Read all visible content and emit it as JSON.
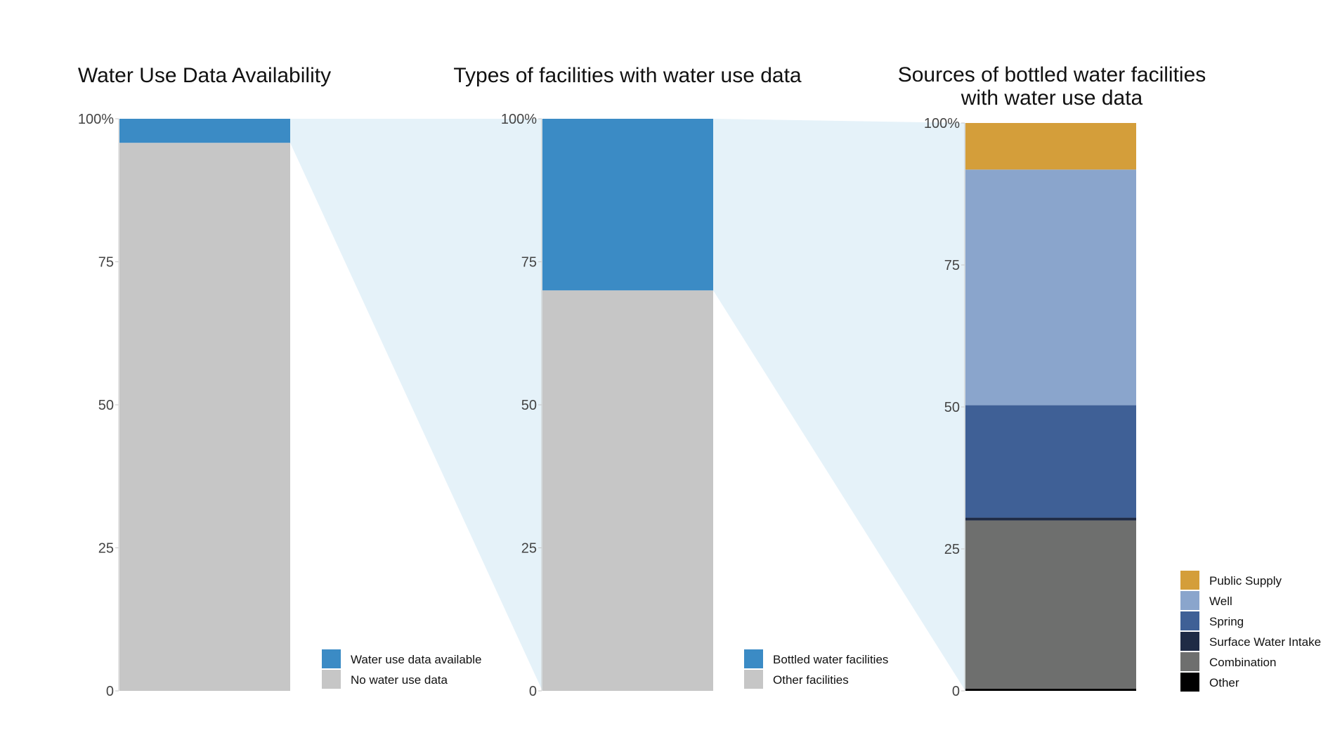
{
  "chart_data": [
    {
      "type": "bar",
      "stacked": true,
      "title": "Water Use Data Availability",
      "yticks": [
        "0",
        "25",
        "50",
        "75",
        "100%"
      ],
      "ylim": [
        0,
        100
      ],
      "legend_position": "bottom-right",
      "series": [
        {
          "name": "No water use data",
          "value": 95.8,
          "color": "#c6c6c6"
        },
        {
          "name": "Water use data available",
          "value": 4.2,
          "color": "#3b8bc5"
        }
      ],
      "legend": [
        {
          "name": "Water use data available",
          "color": "#3b8bc5"
        },
        {
          "name": "No water use data",
          "color": "#c6c6c6"
        }
      ]
    },
    {
      "type": "bar",
      "stacked": true,
      "title": "Types of facilities with water use data",
      "yticks": [
        "0",
        "25",
        "50",
        "75",
        "100%"
      ],
      "ylim": [
        0,
        100
      ],
      "legend_position": "bottom-right",
      "series": [
        {
          "name": "Other facilities",
          "value": 70,
          "color": "#c6c6c6"
        },
        {
          "name": "Bottled water facilities",
          "value": 30,
          "color": "#3b8bc5"
        }
      ],
      "legend": [
        {
          "name": "Bottled water facilities",
          "color": "#3b8bc5"
        },
        {
          "name": "Other facilities",
          "color": "#c6c6c6"
        }
      ]
    },
    {
      "type": "bar",
      "stacked": true,
      "title_lines": [
        "Sources of bottled water facilities",
        "with water use data"
      ],
      "yticks": [
        "0",
        "25",
        "50",
        "75",
        "100%"
      ],
      "ylim": [
        0,
        100
      ],
      "legend_position": "right",
      "series": [
        {
          "name": "Other",
          "value": 0.4,
          "color": "#000000"
        },
        {
          "name": "Combination",
          "value": 29.6,
          "color": "#6e6f6e"
        },
        {
          "name": "Surface Water Intake",
          "value": 0.5,
          "color": "#1f2b45"
        },
        {
          "name": "Spring",
          "value": 19.8,
          "color": "#3f6096"
        },
        {
          "name": "Well",
          "value": 41.5,
          "color": "#8aa5cc"
        },
        {
          "name": "Public Supply",
          "value": 8.2,
          "color": "#d49e3a"
        }
      ],
      "legend": [
        {
          "name": "Public Supply",
          "color": "#d49e3a"
        },
        {
          "name": "Well",
          "color": "#8aa5cc"
        },
        {
          "name": "Spring",
          "color": "#3f6096"
        },
        {
          "name": "Surface Water Intake",
          "color": "#1f2b45"
        },
        {
          "name": "Combination",
          "color": "#6e6f6e"
        },
        {
          "name": "Other",
          "color": "#000000"
        }
      ]
    }
  ],
  "colors": {
    "connector": "#e5f2f9",
    "axis": "#c8c8c8"
  }
}
